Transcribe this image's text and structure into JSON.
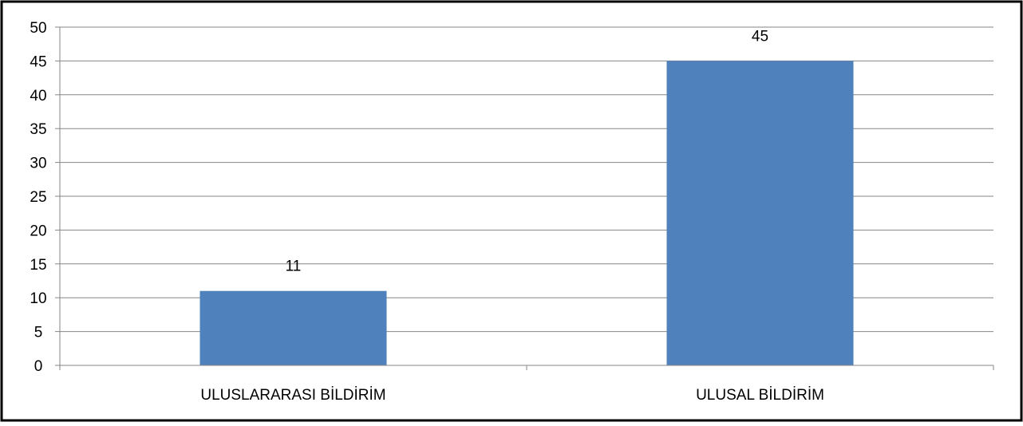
{
  "chart_data": {
    "type": "bar",
    "title": "",
    "xlabel": "",
    "ylabel": "",
    "categories": [
      "ULUSLARARASI BİLDİRİM",
      "ULUSAL BİLDİRİM"
    ],
    "values": [
      11,
      45
    ],
    "data_labels": [
      "11",
      "45"
    ],
    "ylim": [
      0,
      50
    ],
    "yticks": [
      "0",
      "5",
      "10",
      "15",
      "20",
      "25",
      "30",
      "35",
      "40",
      "45",
      "50"
    ],
    "grid": true,
    "legend": "none",
    "colors": {
      "bar": "#4F81BD",
      "grid": "#868686",
      "axis": "#868686",
      "border": "#000000"
    }
  }
}
